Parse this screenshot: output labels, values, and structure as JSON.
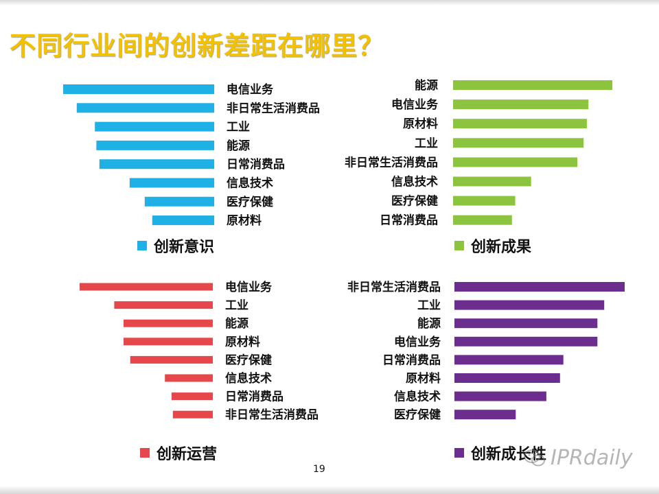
{
  "title": "不同行业间的创新差距在哪里？",
  "page_number": "19",
  "watermark_text": "IPRdaily",
  "chart_data": [
    {
      "type": "bar",
      "orientation": "horizontal",
      "bar_direction": "leftward",
      "legend": "创新意识",
      "color": "#1fb1e6",
      "categories": [
        "电信业务",
        "非日常生活消费品",
        "工业",
        "能源",
        "日常消费品",
        "信息技术",
        "医疗保健",
        "原材料"
      ],
      "values": [
        100,
        91,
        79,
        78,
        76,
        56,
        46,
        41
      ]
    },
    {
      "type": "bar",
      "orientation": "horizontal",
      "bar_direction": "rightward",
      "legend": "创新成果",
      "color": "#8cc43f",
      "categories": [
        "能源",
        "电信业务",
        "原材料",
        "工业",
        "非日常生活消费品",
        "信息技术",
        "医疗保健",
        "日常消费品"
      ],
      "values": [
        100,
        85,
        84,
        82,
        78,
        49,
        39,
        37
      ]
    },
    {
      "type": "bar",
      "orientation": "horizontal",
      "bar_direction": "leftward",
      "legend": "创新运营",
      "color": "#e5474a",
      "categories": [
        "电信业务",
        "工业",
        "能源",
        "原材料",
        "医疗保健",
        "信息技术",
        "日常消费品",
        "非日常生活消费品"
      ],
      "values": [
        100,
        74,
        67,
        67,
        62,
        36,
        31,
        30
      ]
    },
    {
      "type": "bar",
      "orientation": "horizontal",
      "bar_direction": "rightward",
      "legend": "创新成长性",
      "color": "#6b2d8e",
      "categories": [
        "非日常生活消费品",
        "工业",
        "能源",
        "电信业务",
        "日常消费品",
        "原材料",
        "信息技术",
        "医疗保健"
      ],
      "values": [
        100,
        88,
        84,
        84,
        64,
        62,
        54,
        36
      ]
    }
  ]
}
